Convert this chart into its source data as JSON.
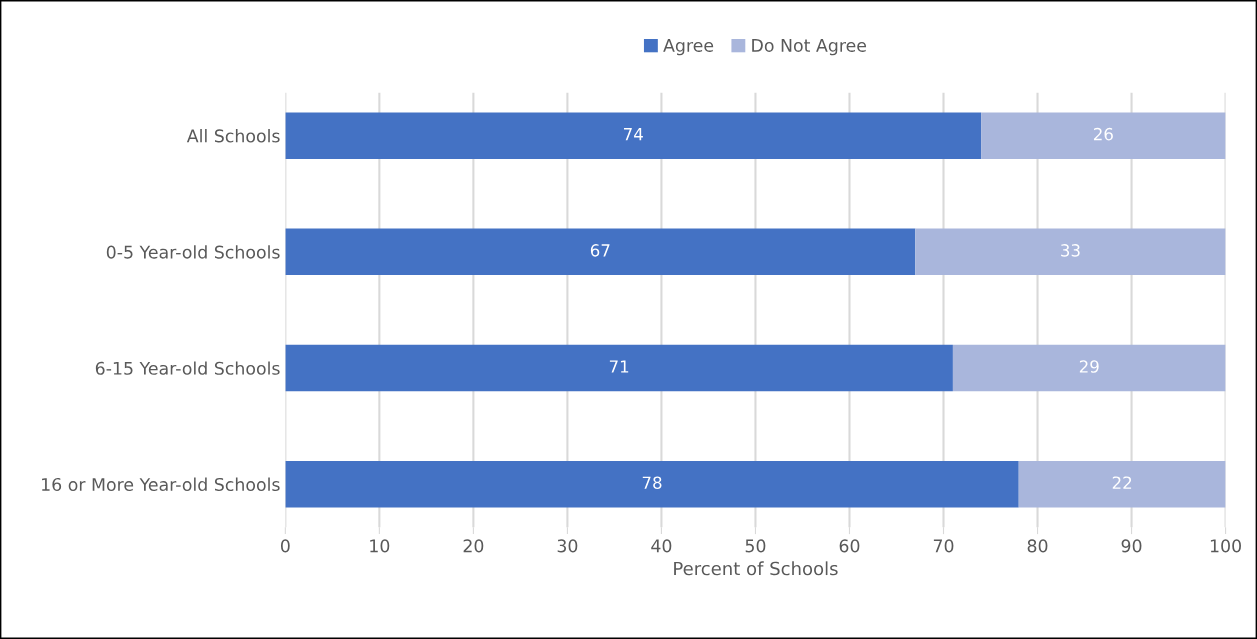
{
  "chart_data": {
    "type": "bar",
    "orientation": "horizontal",
    "stacked": true,
    "xlabel": "Percent of Schools",
    "categories": [
      "All Schools",
      "0-5 Year-old Schools",
      "6-15 Year-old Schools",
      "16 or More Year-old Schools"
    ],
    "series": [
      {
        "name": "Agree",
        "color": "#4472c4",
        "values": [
          74,
          67,
          71,
          78
        ]
      },
      {
        "name": "Do Not Agree",
        "color": "#a9b6dc",
        "values": [
          26,
          33,
          29,
          22
        ]
      }
    ],
    "xlim": [
      0,
      100
    ],
    "xticks": [
      0,
      10,
      20,
      30,
      40,
      50,
      60,
      70,
      80,
      90,
      100
    ],
    "grid": "x",
    "legend": "top",
    "data_labels": true
  }
}
